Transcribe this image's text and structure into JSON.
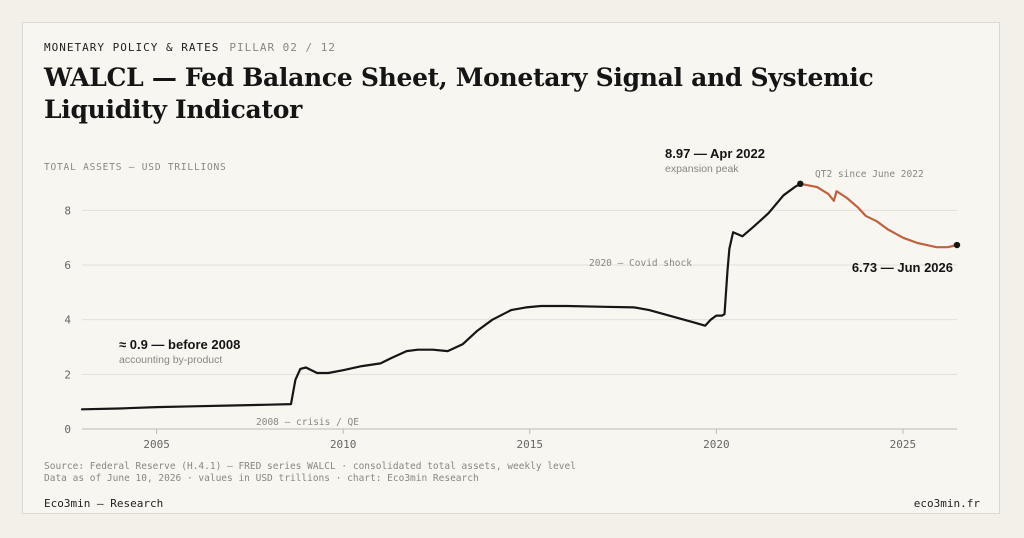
{
  "header": {
    "kicker": "MONETARY POLICY & RATES",
    "pillar": "PILLAR 02 / 12",
    "title": "WALCL — Fed Balance Sheet, Monetary Signal and Systemic Liquidity Indicator"
  },
  "chart_data": {
    "type": "line",
    "ylabel": "TOTAL ASSETS — USD TRILLIONS",
    "ylim": [
      0,
      9
    ],
    "yticks": [
      0,
      2,
      4,
      6,
      8
    ],
    "xlim": [
      2003.0,
      2026.45
    ],
    "xticks": [
      2005,
      2010,
      2015,
      2020,
      2025
    ],
    "grid": true,
    "series": [
      {
        "color": "#161616",
        "x": [
          2003.0,
          2004.0,
          2005.0,
          2006.0,
          2007.0,
          2008.0,
          2008.6,
          2008.72,
          2008.85,
          2009.0,
          2009.3,
          2009.6,
          2010.0,
          2010.5,
          2011.0,
          2011.3,
          2011.7,
          2012.0,
          2012.4,
          2012.8,
          2013.2,
          2013.6,
          2014.0,
          2014.5,
          2014.9,
          2015.3,
          2016.0,
          2017.0,
          2017.8,
          2018.2,
          2018.6,
          2019.0,
          2019.4,
          2019.7,
          2019.85,
          2020.0,
          2020.15,
          2020.22,
          2020.3,
          2020.35,
          2020.45,
          2020.7,
          2021.0,
          2021.4,
          2021.8,
          2022.1,
          2022.25
        ],
        "y": [
          0.72,
          0.75,
          0.8,
          0.83,
          0.86,
          0.89,
          0.91,
          1.8,
          2.2,
          2.25,
          2.05,
          2.05,
          2.15,
          2.3,
          2.4,
          2.6,
          2.85,
          2.9,
          2.9,
          2.85,
          3.1,
          3.6,
          4.0,
          4.35,
          4.45,
          4.5,
          4.5,
          4.47,
          4.45,
          4.35,
          4.2,
          4.05,
          3.9,
          3.78,
          4.0,
          4.15,
          4.15,
          4.2,
          5.8,
          6.6,
          7.2,
          7.05,
          7.4,
          7.9,
          8.55,
          8.85,
          8.97
        ]
      },
      {
        "color": "#c0613f",
        "x": [
          2022.25,
          2022.7,
          2023.0,
          2023.15,
          2023.22,
          2023.5,
          2023.8,
          2024.0,
          2024.3,
          2024.6,
          2025.0,
          2025.4,
          2025.9,
          2026.2,
          2026.45
        ],
        "y": [
          8.97,
          8.85,
          8.6,
          8.35,
          8.7,
          8.45,
          8.1,
          7.8,
          7.6,
          7.3,
          7.0,
          6.8,
          6.65,
          6.65,
          6.73
        ]
      }
    ],
    "annotations": [
      {
        "label": "≈ 0.9 — before 2008",
        "sub": "accounting by-product"
      },
      {
        "label": "8.97 — Apr 2022",
        "sub": "expansion peak"
      },
      {
        "label": "6.73 — Jun 2026"
      },
      {
        "label": "2008 — crisis / QE"
      },
      {
        "label": "2020 — Covid shock"
      },
      {
        "label": "QT2 since June 2022"
      }
    ]
  },
  "footer": {
    "source_line1": "Source: Federal Reserve (H.4.1) — FRED series WALCL · consolidated total assets, weekly level",
    "source_line2": "Data as of June 10, 2026 · values in USD trillions · chart: Eco3min Research",
    "brand": "Eco3min — Research",
    "site": "eco3min.fr"
  }
}
